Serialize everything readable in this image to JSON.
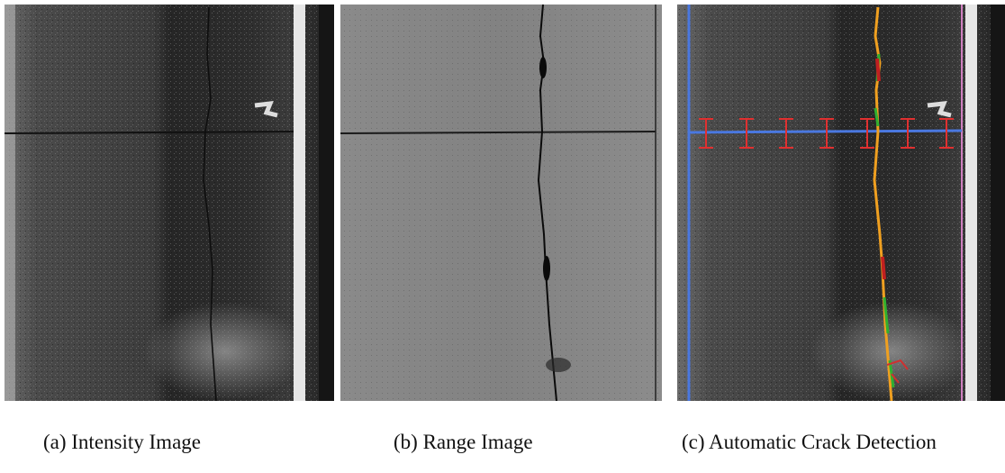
{
  "panels": [
    {
      "caption": "(a) Intensity Image"
    },
    {
      "caption": "(b) Range Image"
    },
    {
      "caption": "(c) Automatic Crack Detection"
    }
  ]
}
